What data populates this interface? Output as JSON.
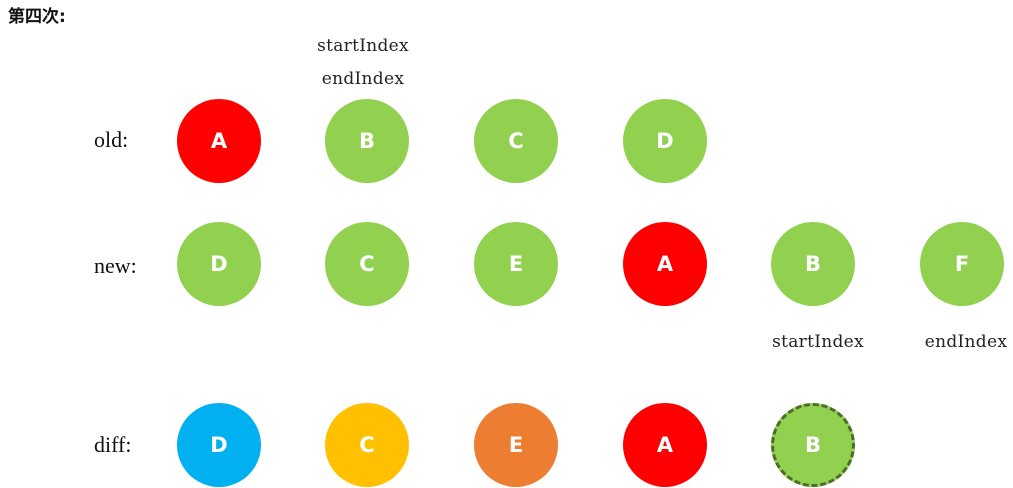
{
  "title": "第四次:",
  "labels": {
    "old": "old:",
    "new": "new:",
    "diff": "diff:"
  },
  "indices": {
    "old_start": "startIndex",
    "old_end": "endIndex",
    "new_start": "startIndex",
    "new_end": "endIndex"
  },
  "colors": {
    "green": "#92d050",
    "red": "#ff0000",
    "blue": "#00b0f0",
    "orange": "#ffc000",
    "dark_orange": "#ed7d31"
  },
  "old": [
    {
      "label": "A",
      "color": "#ff0000"
    },
    {
      "label": "B",
      "color": "#92d050"
    },
    {
      "label": "C",
      "color": "#92d050"
    },
    {
      "label": "D",
      "color": "#92d050"
    }
  ],
  "new": [
    {
      "label": "D",
      "color": "#92d050"
    },
    {
      "label": "C",
      "color": "#92d050"
    },
    {
      "label": "E",
      "color": "#92d050"
    },
    {
      "label": "A",
      "color": "#ff0000"
    },
    {
      "label": "B",
      "color": "#92d050"
    },
    {
      "label": "F",
      "color": "#92d050"
    }
  ],
  "diff": [
    {
      "label": "D",
      "color": "#00b0f0"
    },
    {
      "label": "C",
      "color": "#ffc000"
    },
    {
      "label": "E",
      "color": "#ed7d31"
    },
    {
      "label": "A",
      "color": "#ff0000"
    },
    {
      "label": "B",
      "color": "#92d050",
      "dashed": true
    }
  ]
}
